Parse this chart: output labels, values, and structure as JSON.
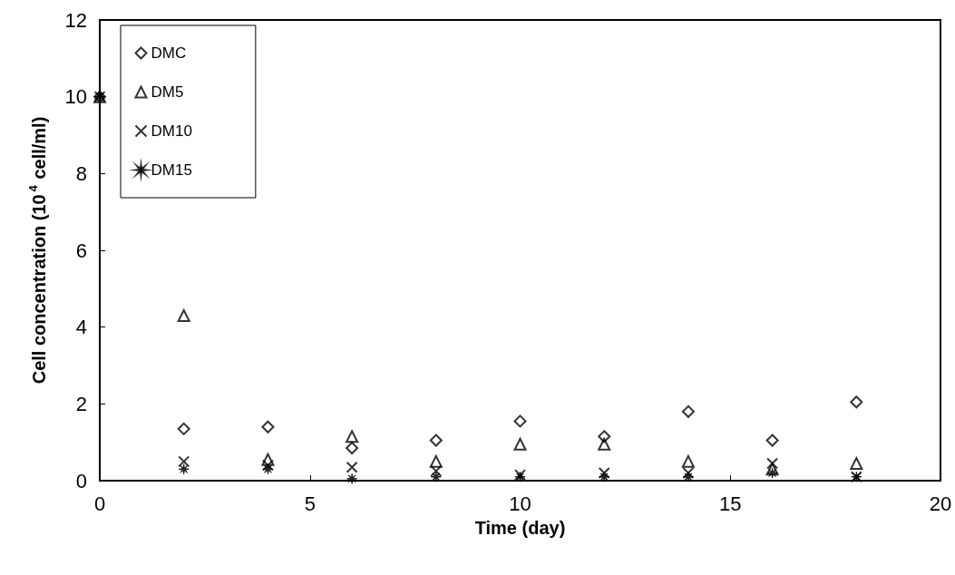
{
  "chart_data": {
    "type": "scatter",
    "xlabel": "Time (day)",
    "ylabel": "Cell concentration (10$^{4}$ cell/ml)",
    "x": [
      0,
      2,
      4,
      6,
      8,
      10,
      12,
      14,
      16,
      18
    ],
    "series": [
      {
        "name": "DMC",
        "color": "#000000",
        "marker": "diamond",
        "values": [
          10,
          1.35,
          1.4,
          0.85,
          1.05,
          1.55,
          1.15,
          1.8,
          1.05,
          2.05
        ]
      },
      {
        "name": "DM5",
        "color": "#000000",
        "marker": "triangle",
        "values": [
          10,
          4.3,
          0.55,
          1.15,
          0.5,
          0.95,
          0.95,
          0.5,
          0.3,
          0.45
        ]
      },
      {
        "name": "DM10",
        "color": "#000000",
        "marker": "cross",
        "values": [
          10,
          0.5,
          0.4,
          0.35,
          0.25,
          0.15,
          0.2,
          0.2,
          0.45,
          0.1
        ]
      },
      {
        "name": "DM15",
        "color": "#000000",
        "marker": "star",
        "values": [
          10,
          0.3,
          0.3,
          0.05,
          0.1,
          0.1,
          0.1,
          0.1,
          0.2,
          0.1
        ]
      }
    ],
    "xlim": [
      0,
      20
    ],
    "xticks": [
      0,
      5,
      10,
      15,
      20
    ],
    "ylim": [
      0,
      12
    ],
    "yticks": [
      0,
      2,
      4,
      6,
      8,
      10,
      12
    ],
    "grid": false,
    "legend": "top left"
  }
}
